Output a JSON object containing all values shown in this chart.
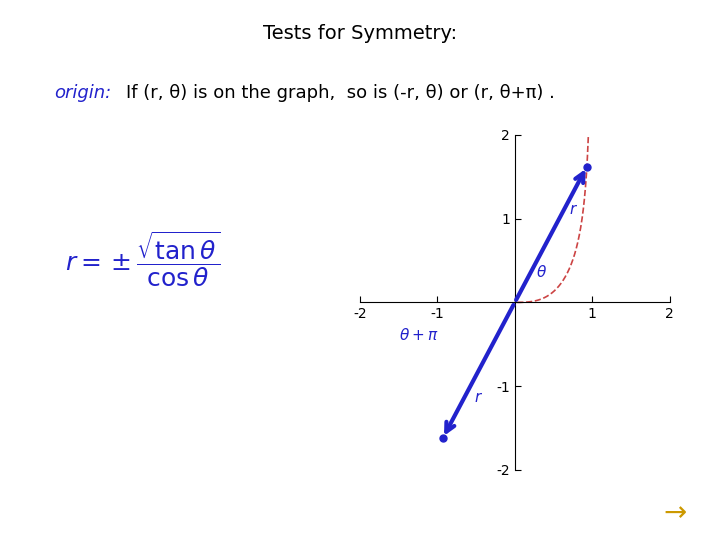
{
  "title": "Tests for Symmetry:",
  "title_color": "#000000",
  "title_fontsize": 14,
  "origin_label": "origin:",
  "origin_color": "#2222CC",
  "body_text": "If (r, θ) is on the graph,  so is (-r, θ) or (r, θ+π) .",
  "body_color": "#000000",
  "body_fontsize": 13,
  "formula_color": "#2222CC",
  "arrow_color": "#CC9900",
  "background_color": "#ffffff",
  "plot_xlim": [
    -2,
    2
  ],
  "plot_ylim": [
    -2,
    2
  ],
  "plot_xticks": [
    -2,
    -1,
    0,
    1,
    2
  ],
  "plot_yticks": [
    -2,
    -1,
    0,
    1,
    2
  ],
  "curve_color_red": "#CC4444",
  "curve_color_blue": "#2222CC",
  "label_r_upper": "r",
  "label_theta_upper": "θ",
  "label_theta_pi": "θ+π",
  "label_r_lower": "r"
}
